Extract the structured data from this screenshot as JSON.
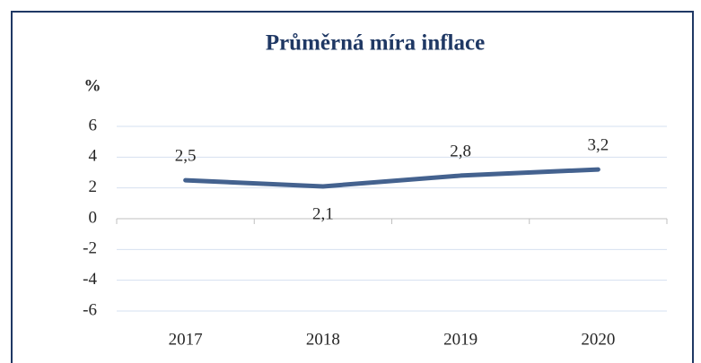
{
  "chart_data": {
    "type": "line",
    "title": "Průměrná míra inflace",
    "y_label": "%",
    "categories": [
      "2017",
      "2018",
      "2019",
      "2020"
    ],
    "series": [
      {
        "name": "Průměrná míra inflace",
        "color": "#44628f",
        "values": [
          2.5,
          2.1,
          2.8,
          3.2
        ],
        "value_labels": [
          "2,5",
          "2,1",
          "2,8",
          "3,2"
        ]
      }
    ],
    "ylim": [
      -6,
      6
    ],
    "yticks": [
      -6,
      -4,
      -2,
      0,
      2,
      4,
      6
    ],
    "grid": true
  }
}
